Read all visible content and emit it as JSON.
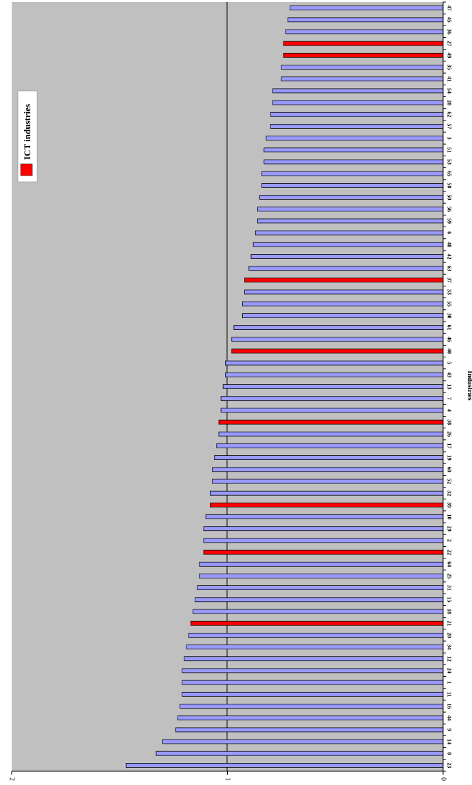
{
  "chart_data": {
    "type": "bar",
    "orientation": "rotated-page",
    "xlabel": "Industries",
    "ylabel": "",
    "ylim": [
      0,
      2
    ],
    "yticks": [
      "0",
      "1",
      "2"
    ],
    "grid": "major line at 1",
    "legend": {
      "position": "top-right",
      "entries": [
        {
          "label": "ICT industries",
          "color": "#ff0000"
        }
      ]
    },
    "colors": {
      "plot_bg": "#c0c0c0",
      "bar": "#9999ff",
      "ict_bar": "#ff0000",
      "bar_outline": "#000000"
    },
    "categories": [
      "23",
      "8",
      "14",
      "9",
      "44",
      "16",
      "11",
      "1",
      "24",
      "12",
      "34",
      "20",
      "21",
      "18",
      "15",
      "31",
      "25",
      "64",
      "22",
      "2",
      "29",
      "10",
      "39",
      "32",
      "52",
      "60",
      "19",
      "17",
      "26",
      "38",
      "4",
      "7",
      "13",
      "43",
      "5",
      "40",
      "46",
      "61",
      "30",
      "55",
      "33",
      "37",
      "63",
      "42",
      "48",
      "6",
      "59",
      "56",
      "50",
      "58",
      "65",
      "53",
      "51",
      "3",
      "57",
      "62",
      "28",
      "54",
      "41",
      "35",
      "49",
      "27",
      "36",
      "45",
      "47"
    ],
    "values": [
      1.47,
      1.33,
      1.3,
      1.24,
      1.23,
      1.22,
      1.21,
      1.21,
      1.21,
      1.2,
      1.19,
      1.18,
      1.17,
      1.16,
      1.15,
      1.14,
      1.13,
      1.13,
      1.11,
      1.11,
      1.11,
      1.1,
      1.08,
      1.08,
      1.07,
      1.07,
      1.06,
      1.05,
      1.04,
      1.04,
      1.03,
      1.03,
      1.02,
      1.01,
      1.01,
      0.98,
      0.98,
      0.97,
      0.93,
      0.93,
      0.92,
      0.92,
      0.9,
      0.89,
      0.88,
      0.87,
      0.86,
      0.86,
      0.85,
      0.84,
      0.84,
      0.83,
      0.83,
      0.82,
      0.8,
      0.8,
      0.79,
      0.79,
      0.75,
      0.75,
      0.74,
      0.74,
      0.73,
      0.72,
      0.71
    ],
    "ict": [
      false,
      false,
      false,
      false,
      false,
      false,
      false,
      false,
      false,
      false,
      false,
      false,
      true,
      false,
      false,
      false,
      false,
      false,
      true,
      false,
      false,
      false,
      true,
      false,
      false,
      false,
      false,
      false,
      false,
      true,
      false,
      false,
      false,
      false,
      false,
      true,
      false,
      false,
      false,
      false,
      false,
      true,
      false,
      false,
      false,
      false,
      false,
      false,
      false,
      false,
      false,
      false,
      false,
      false,
      false,
      false,
      false,
      false,
      false,
      false,
      true,
      true,
      false,
      false,
      false
    ]
  }
}
